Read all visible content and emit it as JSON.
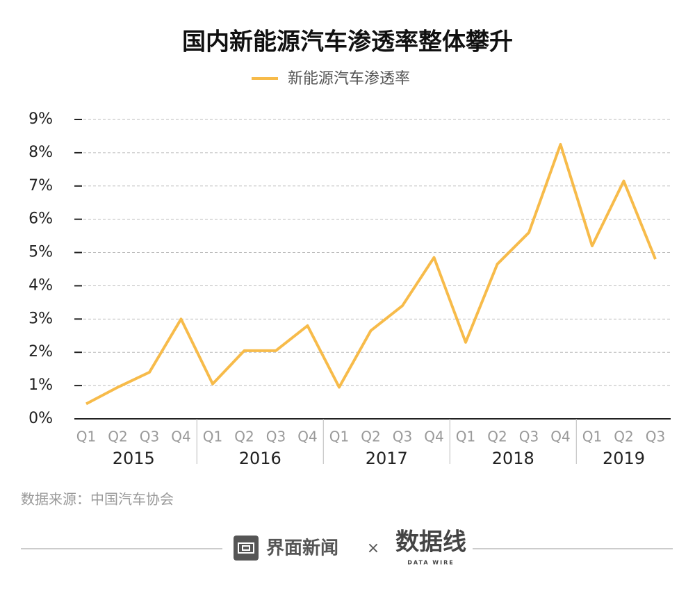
{
  "chart_data": {
    "type": "line",
    "title": "国内新能源汽车渗透率整体攀升",
    "groups": [
      {
        "name": "2015",
        "categories": [
          "Q1",
          "Q2",
          "Q3",
          "Q4"
        ]
      },
      {
        "name": "2016",
        "categories": [
          "Q1",
          "Q2",
          "Q3",
          "Q4"
        ]
      },
      {
        "name": "2017",
        "categories": [
          "Q1",
          "Q2",
          "Q3",
          "Q4"
        ]
      },
      {
        "name": "2018",
        "categories": [
          "Q1",
          "Q2",
          "Q3",
          "Q4"
        ]
      },
      {
        "name": "2019",
        "categories": [
          "Q1",
          "Q2",
          "Q3"
        ]
      }
    ],
    "series": [
      {
        "name": "新能源汽车渗透率",
        "color": "#f7bb4a",
        "values": [
          0.45,
          0.95,
          1.4,
          3.0,
          1.05,
          2.05,
          2.05,
          2.8,
          0.95,
          2.65,
          3.4,
          4.85,
          2.3,
          4.65,
          5.6,
          8.25,
          5.2,
          7.15,
          4.8
        ]
      }
    ],
    "ylim": [
      0,
      9
    ],
    "yticks": [
      {
        "value": 0,
        "label": "0%"
      },
      {
        "value": 1,
        "label": "1%"
      },
      {
        "value": 2,
        "label": "2%"
      },
      {
        "value": 3,
        "label": "3%"
      },
      {
        "value": 4,
        "label": "4%"
      },
      {
        "value": 5,
        "label": "5%"
      },
      {
        "value": 6,
        "label": "6%"
      },
      {
        "value": 7,
        "label": "7%"
      },
      {
        "value": 8,
        "label": "8%"
      },
      {
        "value": 9,
        "label": "9%"
      }
    ],
    "grid": true,
    "source": "数据来源：中国汽车协会"
  },
  "footer": {
    "brand": "界面新闻",
    "times": "×",
    "logo": "数据线",
    "logo_sub": "DATA WIRE"
  }
}
